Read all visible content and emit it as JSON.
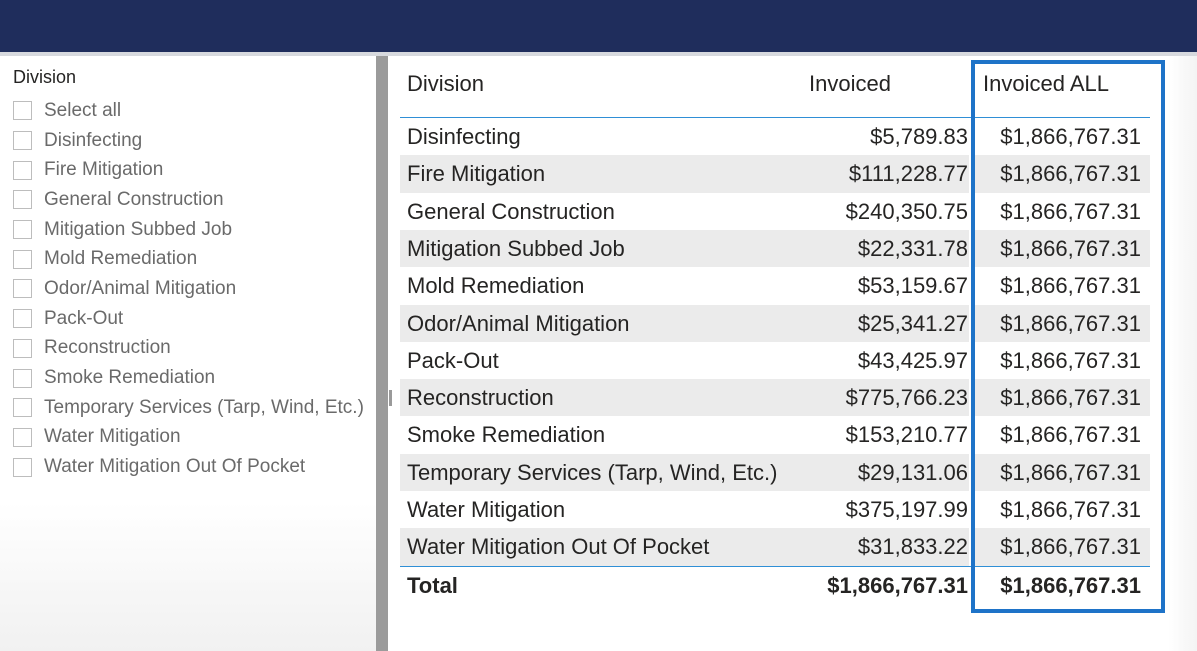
{
  "colors": {
    "topbar": "#1f2d5c",
    "highlight": "#1e73c8",
    "table_rule": "#2f8fd6"
  },
  "slicer": {
    "title": "Division",
    "items": [
      "Select all",
      "Disinfecting",
      "Fire Mitigation",
      "General Construction",
      "Mitigation Subbed Job",
      "Mold Remediation",
      "Odor/Animal Mitigation",
      "Pack-Out",
      "Reconstruction",
      "Smoke Remediation",
      "Temporary Services (Tarp, Wind, Etc.)",
      "Water Mitigation",
      "Water Mitigation Out Of Pocket"
    ]
  },
  "table": {
    "headers": {
      "division": "Division",
      "invoiced": "Invoiced",
      "invoiced_all": "Invoiced ALL"
    },
    "rows": [
      {
        "division": "Disinfecting",
        "invoiced": "$5,789.83",
        "invoiced_all": "$1,866,767.31"
      },
      {
        "division": "Fire Mitigation",
        "invoiced": "$111,228.77",
        "invoiced_all": "$1,866,767.31"
      },
      {
        "division": "General Construction",
        "invoiced": "$240,350.75",
        "invoiced_all": "$1,866,767.31"
      },
      {
        "division": "Mitigation Subbed Job",
        "invoiced": "$22,331.78",
        "invoiced_all": "$1,866,767.31"
      },
      {
        "division": "Mold Remediation",
        "invoiced": "$53,159.67",
        "invoiced_all": "$1,866,767.31"
      },
      {
        "division": "Odor/Animal Mitigation",
        "invoiced": "$25,341.27",
        "invoiced_all": "$1,866,767.31"
      },
      {
        "division": "Pack-Out",
        "invoiced": "$43,425.97",
        "invoiced_all": "$1,866,767.31"
      },
      {
        "division": "Reconstruction",
        "invoiced": "$775,766.23",
        "invoiced_all": "$1,866,767.31"
      },
      {
        "division": "Smoke Remediation",
        "invoiced": "$153,210.77",
        "invoiced_all": "$1,866,767.31"
      },
      {
        "division": "Temporary Services (Tarp, Wind, Etc.)",
        "invoiced": "$29,131.06",
        "invoiced_all": "$1,866,767.31"
      },
      {
        "division": "Water Mitigation",
        "invoiced": "$375,197.99",
        "invoiced_all": "$1,866,767.31"
      },
      {
        "division": "Water Mitigation Out Of Pocket",
        "invoiced": "$31,833.22",
        "invoiced_all": "$1,866,767.31"
      }
    ],
    "total": {
      "label": "Total",
      "invoiced": "$1,866,767.31",
      "invoiced_all": "$1,866,767.31"
    }
  }
}
